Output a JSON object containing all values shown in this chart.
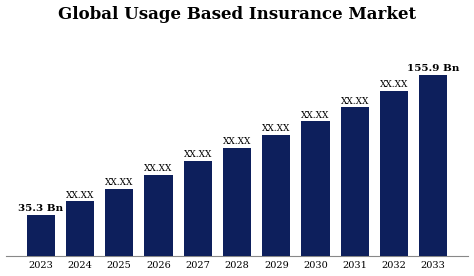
{
  "title": "Global Usage Based Insurance Market",
  "years": [
    2023,
    2024,
    2025,
    2026,
    2027,
    2028,
    2029,
    2030,
    2031,
    2032,
    2033
  ],
  "values": [
    35.3,
    47.0,
    58.0,
    70.0,
    82.0,
    93.0,
    104.0,
    116.0,
    128.0,
    142.0,
    155.9
  ],
  "bar_labels": [
    "35.3 Bn",
    "XX.XX",
    "XX.XX",
    "XX.XX",
    "XX.XX",
    "XX.XX",
    "XX.XX",
    "XX.XX",
    "XX.XX",
    "XX.XX",
    "155.9 Bn"
  ],
  "bar_color": "#0d1f5c",
  "background_color": "#ffffff",
  "title_fontsize": 12,
  "label_fontsize": 6.5,
  "tick_fontsize": 7,
  "ylim": [
    0,
    195
  ],
  "label_bold_first": true,
  "label_bold_last": true
}
